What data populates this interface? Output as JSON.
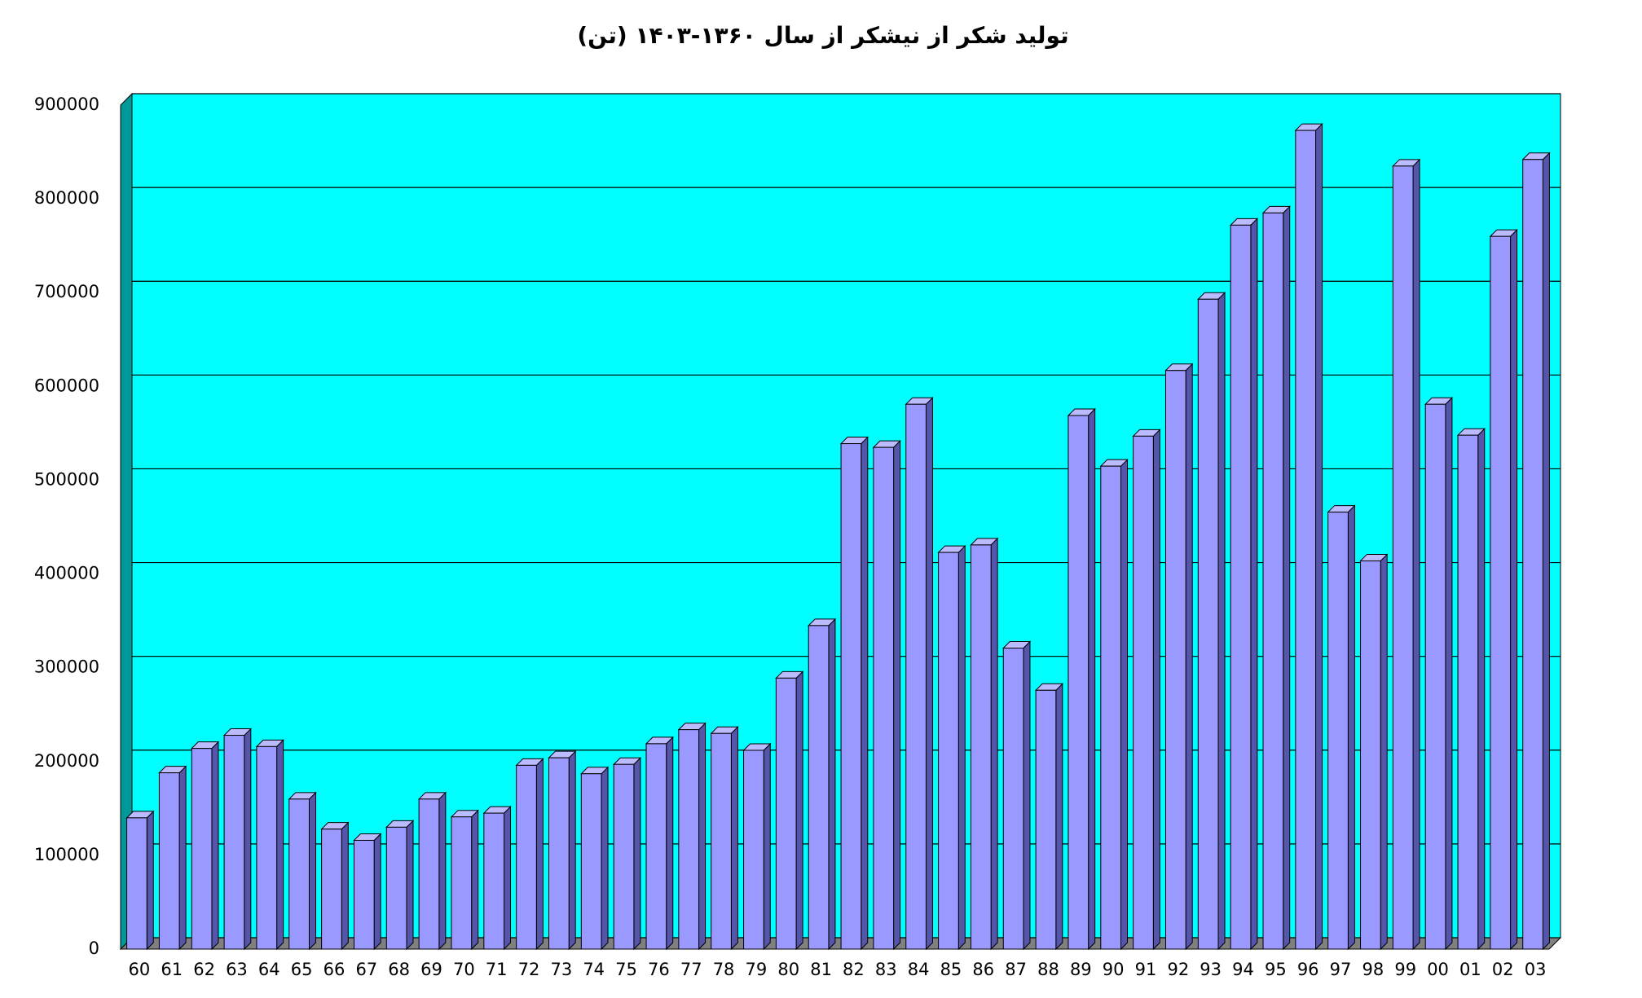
{
  "chart_data": {
    "type": "bar",
    "title": "تولید شکر از نیشکر از سال ۱۳۶۰-۱۴۰۳ (تن)",
    "categories": [
      "60",
      "61",
      "62",
      "63",
      "64",
      "65",
      "66",
      "67",
      "68",
      "69",
      "70",
      "71",
      "72",
      "73",
      "74",
      "75",
      "76",
      "77",
      "78",
      "79",
      "80",
      "81",
      "82",
      "83",
      "84",
      "85",
      "86",
      "87",
      "88",
      "89",
      "90",
      "91",
      "92",
      "93",
      "94",
      "95",
      "96",
      "97",
      "98",
      "99",
      "00",
      "01",
      "02",
      "03"
    ],
    "values": [
      140000,
      188000,
      214000,
      228000,
      216000,
      160000,
      128000,
      116000,
      130000,
      160000,
      141000,
      145000,
      196000,
      204000,
      187000,
      197000,
      219000,
      234000,
      230000,
      212000,
      289000,
      345000,
      539000,
      535000,
      581000,
      423000,
      431000,
      321000,
      276000,
      569000,
      515000,
      547000,
      617000,
      693000,
      772000,
      785000,
      873000,
      466000,
      414000,
      835000,
      581000,
      548000,
      760000,
      842000
    ],
    "color": "#9999ff",
    "wall_color": "#00ffff",
    "ylim": [
      0,
      900000
    ],
    "yticks": [
      0,
      100000,
      200000,
      300000,
      400000,
      500000,
      600000,
      700000,
      800000,
      900000
    ],
    "grid": true
  }
}
